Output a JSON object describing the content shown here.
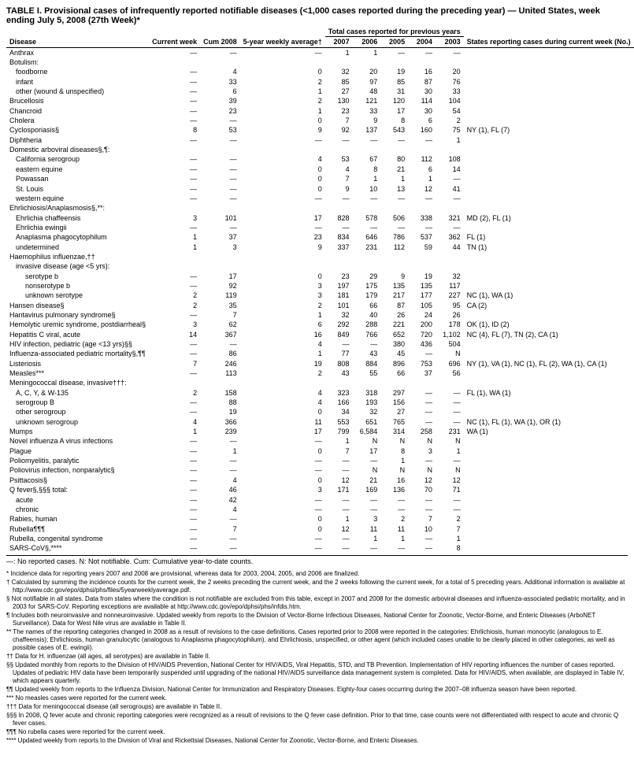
{
  "title": "TABLE I. Provisional cases of infrequently reported notifiable diseases (<1,000 cases reported during the preceding year) — United States, week ending July 5, 2008 (27th Week)*",
  "columns": {
    "disease": "Disease",
    "current_week": "Current week",
    "cum_2008": "Cum 2008",
    "avg": "5-year weekly average†",
    "totals_group": "Total cases reported for previous years",
    "y2007": "2007",
    "y2006": "2006",
    "y2005": "2005",
    "y2004": "2004",
    "y2003": "2003",
    "states": "States reporting cases during current week (No.)"
  },
  "rows": [
    {
      "d": "Anthrax",
      "i": 0,
      "v": [
        "—",
        "—",
        "—",
        "1",
        "1",
        "—",
        "—",
        "—",
        ""
      ]
    },
    {
      "d": "Botulism:",
      "i": 0,
      "v": [
        "",
        "",
        "",
        "",
        "",
        "",
        "",
        "",
        ""
      ]
    },
    {
      "d": "foodborne",
      "i": 1,
      "v": [
        "—",
        "4",
        "0",
        "32",
        "20",
        "19",
        "16",
        "20",
        ""
      ]
    },
    {
      "d": "infant",
      "i": 1,
      "v": [
        "—",
        "33",
        "2",
        "85",
        "97",
        "85",
        "87",
        "76",
        ""
      ]
    },
    {
      "d": "other (wound & unspecified)",
      "i": 1,
      "v": [
        "—",
        "6",
        "1",
        "27",
        "48",
        "31",
        "30",
        "33",
        ""
      ]
    },
    {
      "d": "Brucellosis",
      "i": 0,
      "v": [
        "—",
        "39",
        "2",
        "130",
        "121",
        "120",
        "114",
        "104",
        ""
      ]
    },
    {
      "d": "Chancroid",
      "i": 0,
      "v": [
        "—",
        "23",
        "1",
        "23",
        "33",
        "17",
        "30",
        "54",
        ""
      ]
    },
    {
      "d": "Cholera",
      "i": 0,
      "v": [
        "—",
        "—",
        "0",
        "7",
        "9",
        "8",
        "6",
        "2",
        ""
      ]
    },
    {
      "d": "Cyclosporiasis§",
      "i": 0,
      "v": [
        "8",
        "53",
        "9",
        "92",
        "137",
        "543",
        "160",
        "75",
        "NY (1), FL (7)"
      ]
    },
    {
      "d": "Diphtheria",
      "i": 0,
      "v": [
        "—",
        "—",
        "—",
        "—",
        "—",
        "—",
        "—",
        "1",
        ""
      ]
    },
    {
      "d": "Domestic arboviral diseases§,¶:",
      "i": 0,
      "v": [
        "",
        "",
        "",
        "",
        "",
        "",
        "",
        "",
        ""
      ]
    },
    {
      "d": "California serogroup",
      "i": 1,
      "v": [
        "—",
        "—",
        "4",
        "53",
        "67",
        "80",
        "112",
        "108",
        ""
      ]
    },
    {
      "d": "eastern equine",
      "i": 1,
      "v": [
        "—",
        "—",
        "0",
        "4",
        "8",
        "21",
        "6",
        "14",
        ""
      ]
    },
    {
      "d": "Powassan",
      "i": 1,
      "v": [
        "—",
        "—",
        "0",
        "7",
        "1",
        "1",
        "1",
        "—",
        ""
      ]
    },
    {
      "d": "St. Louis",
      "i": 1,
      "v": [
        "—",
        "—",
        "0",
        "9",
        "10",
        "13",
        "12",
        "41",
        ""
      ]
    },
    {
      "d": "western equine",
      "i": 1,
      "v": [
        "—",
        "—",
        "—",
        "—",
        "—",
        "—",
        "—",
        "—",
        ""
      ]
    },
    {
      "d": "Ehrlichiosis/Anaplasmosis§,**:",
      "i": 0,
      "v": [
        "",
        "",
        "",
        "",
        "",
        "",
        "",
        "",
        ""
      ]
    },
    {
      "d": "Ehrlichia chaffeensis",
      "i": 1,
      "v": [
        "3",
        "101",
        "17",
        "828",
        "578",
        "506",
        "338",
        "321",
        "MD (2), FL (1)"
      ]
    },
    {
      "d": "Ehrlichia ewingii",
      "i": 1,
      "v": [
        "—",
        "—",
        "—",
        "—",
        "—",
        "—",
        "—",
        "—",
        ""
      ]
    },
    {
      "d": "Anaplasma phagocytophilum",
      "i": 1,
      "v": [
        "1",
        "37",
        "23",
        "834",
        "646",
        "786",
        "537",
        "362",
        "FL (1)"
      ]
    },
    {
      "d": "undetermined",
      "i": 1,
      "v": [
        "1",
        "3",
        "9",
        "337",
        "231",
        "112",
        "59",
        "44",
        "TN (1)"
      ]
    },
    {
      "d": "Haemophilus influenzae,††",
      "i": 0,
      "v": [
        "",
        "",
        "",
        "",
        "",
        "",
        "",
        "",
        ""
      ]
    },
    {
      "d": "invasive disease (age <5 yrs):",
      "i": 1,
      "v": [
        "",
        "",
        "",
        "",
        "",
        "",
        "",
        "",
        ""
      ]
    },
    {
      "d": "serotype b",
      "i": 2,
      "v": [
        "—",
        "17",
        "0",
        "23",
        "29",
        "9",
        "19",
        "32",
        ""
      ]
    },
    {
      "d": "nonserotype b",
      "i": 2,
      "v": [
        "—",
        "92",
        "3",
        "197",
        "175",
        "135",
        "135",
        "117",
        ""
      ]
    },
    {
      "d": "unknown serotype",
      "i": 2,
      "v": [
        "2",
        "119",
        "3",
        "181",
        "179",
        "217",
        "177",
        "227",
        "NC (1), WA (1)"
      ]
    },
    {
      "d": "Hansen disease§",
      "i": 0,
      "v": [
        "2",
        "35",
        "2",
        "101",
        "66",
        "87",
        "105",
        "95",
        "CA (2)"
      ]
    },
    {
      "d": "Hantavirus pulmonary syndrome§",
      "i": 0,
      "v": [
        "—",
        "7",
        "1",
        "32",
        "40",
        "26",
        "24",
        "26",
        ""
      ]
    },
    {
      "d": "Hemolytic uremic syndrome, postdiarrheal§",
      "i": 0,
      "v": [
        "3",
        "62",
        "6",
        "292",
        "288",
        "221",
        "200",
        "178",
        "OK (1), ID (2)"
      ]
    },
    {
      "d": "Hepatitis C viral, acute",
      "i": 0,
      "v": [
        "14",
        "367",
        "16",
        "849",
        "766",
        "652",
        "720",
        "1,102",
        "NC (4), FL (7), TN (2), CA (1)"
      ]
    },
    {
      "d": "HIV infection, pediatric (age <13 yrs)§§",
      "i": 0,
      "v": [
        "—",
        "—",
        "4",
        "—",
        "—",
        "380",
        "436",
        "504",
        ""
      ]
    },
    {
      "d": "Influenza-associated pediatric mortality§,¶¶",
      "i": 0,
      "v": [
        "—",
        "86",
        "1",
        "77",
        "43",
        "45",
        "—",
        "N",
        ""
      ]
    },
    {
      "d": "Listeriosis",
      "i": 0,
      "v": [
        "7",
        "246",
        "19",
        "808",
        "884",
        "896",
        "753",
        "696",
        "NY (1), VA (1), NC (1), FL (2), WA (1), CA (1)"
      ]
    },
    {
      "d": "Measles***",
      "i": 0,
      "v": [
        "—",
        "113",
        "2",
        "43",
        "55",
        "66",
        "37",
        "56",
        ""
      ]
    },
    {
      "d": "Meningococcal disease, invasive†††:",
      "i": 0,
      "v": [
        "",
        "",
        "",
        "",
        "",
        "",
        "",
        "",
        ""
      ]
    },
    {
      "d": "A, C, Y, & W-135",
      "i": 1,
      "v": [
        "2",
        "158",
        "4",
        "323",
        "318",
        "297",
        "—",
        "—",
        "FL (1), WA (1)"
      ]
    },
    {
      "d": "serogroup B",
      "i": 1,
      "v": [
        "—",
        "88",
        "4",
        "166",
        "193",
        "156",
        "—",
        "—",
        ""
      ]
    },
    {
      "d": "other serogroup",
      "i": 1,
      "v": [
        "—",
        "19",
        "0",
        "34",
        "32",
        "27",
        "—",
        "—",
        ""
      ]
    },
    {
      "d": "unknown serogroup",
      "i": 1,
      "v": [
        "4",
        "366",
        "11",
        "553",
        "651",
        "765",
        "—",
        "—",
        "NC (1), FL (1), WA (1), OR (1)"
      ]
    },
    {
      "d": "Mumps",
      "i": 0,
      "v": [
        "1",
        "239",
        "17",
        "799",
        "6,584",
        "314",
        "258",
        "231",
        "WA (1)"
      ]
    },
    {
      "d": "Novel influenza A virus infections",
      "i": 0,
      "v": [
        "—",
        "—",
        "—",
        "1",
        "N",
        "N",
        "N",
        "N",
        ""
      ]
    },
    {
      "d": "Plague",
      "i": 0,
      "v": [
        "—",
        "1",
        "0",
        "7",
        "17",
        "8",
        "3",
        "1",
        ""
      ]
    },
    {
      "d": "Poliomyelitis, paralytic",
      "i": 0,
      "v": [
        "—",
        "—",
        "—",
        "—",
        "—",
        "1",
        "—",
        "—",
        ""
      ]
    },
    {
      "d": "Poliovirus infection, nonparalytic§",
      "i": 0,
      "v": [
        "—",
        "—",
        "—",
        "—",
        "N",
        "N",
        "N",
        "N",
        ""
      ]
    },
    {
      "d": "Psittacosis§",
      "i": 0,
      "v": [
        "—",
        "4",
        "0",
        "12",
        "21",
        "16",
        "12",
        "12",
        ""
      ]
    },
    {
      "d": "Q fever§,§§§ total:",
      "i": 0,
      "v": [
        "—",
        "46",
        "3",
        "171",
        "169",
        "136",
        "70",
        "71",
        ""
      ]
    },
    {
      "d": "acute",
      "i": 1,
      "v": [
        "—",
        "42",
        "—",
        "—",
        "—",
        "—",
        "—",
        "—",
        ""
      ]
    },
    {
      "d": "chronic",
      "i": 1,
      "v": [
        "—",
        "4",
        "—",
        "—",
        "—",
        "—",
        "—",
        "—",
        ""
      ]
    },
    {
      "d": "Rabies, human",
      "i": 0,
      "v": [
        "—",
        "—",
        "0",
        "1",
        "3",
        "2",
        "7",
        "2",
        ""
      ]
    },
    {
      "d": "Rubella¶¶¶",
      "i": 0,
      "v": [
        "—",
        "7",
        "0",
        "12",
        "11",
        "11",
        "10",
        "7",
        ""
      ]
    },
    {
      "d": "Rubella, congenital syndrome",
      "i": 0,
      "v": [
        "—",
        "—",
        "—",
        "—",
        "1",
        "1",
        "—",
        "1",
        ""
      ]
    },
    {
      "d": "SARS-CoV§,****",
      "i": 0,
      "v": [
        "—",
        "—",
        "—",
        "—",
        "—",
        "—",
        "—",
        "8",
        ""
      ]
    }
  ],
  "footer_line": "—: No reported cases.    N: Not notifiable.    Cum: Cumulative year-to-date counts.",
  "footnotes": [
    "* Incidence data for reporting years 2007 and 2008 are provisional, whereas data for 2003, 2004, 2005, and 2006 are finalized.",
    "† Calculated by summing the incidence counts for the current week, the 2 weeks preceding the current week, and the 2 weeks following the current week, for a total of 5 preceding years. Additional information is available at http://www.cdc.gov/epo/dphsi/phs/files/5yearweeklyaverage.pdf.",
    "§ Not notifiable in all states. Data from states where the condition is not notifiable are excluded from this table, except in 2007 and 2008 for the domestic arboviral diseases and influenza-associated pediatric mortality, and in 2003 for SARS-CoV. Reporting exceptions are available at http://www.cdc.gov/epo/dphsi/phs/infdis.htm.",
    "¶ Includes both neuroinvasive and nonneuroinvasive. Updated weekly from reports to the Division of Vector-Borne Infectious Diseases, National Center for Zoonotic, Vector-Borne, and Enteric Diseases (ArboNET Surveillance). Data for West Nile virus are available in Table II.",
    "** The names of the reporting categories changed in 2008 as a result of revisions to the case definitions. Cases reported prior to 2008 were reported in the categories: Ehrlichiosis, human monocytic (analogous to E. chaffeensis); Ehrlichiosis, human granulocytic (analogous to Anaplasma phagocytophilum), and Ehrlichiosis, unspecified, or other agent (which included cases unable to be clearly placed in other categories, as well as possible cases of E. ewingii).",
    "†† Data for H. influenzae (all ages, all serotypes) are available in Table II.",
    "§§ Updated monthly from reports to the Division of HIV/AIDS Prevention, National Center for HIV/AIDS, Viral Hepatitis, STD, and TB Prevention. Implementation of HIV reporting influences the number of cases reported. Updates of pediatric HIV data have been temporarily suspended until upgrading of the national HIV/AIDS surveillance data management system is completed. Data for HIV/AIDS, when available, are displayed in Table IV, which appears quarterly.",
    "¶¶ Updated weekly from reports to the Influenza Division, National Center for Immunization and Respiratory Diseases. Eighty-four cases occurring during the 2007–08 influenza season have been reported.",
    "*** No measles cases were reported for the current week.",
    "††† Data for meningococcal disease (all serogroups) are available in Table II.",
    "§§§ In 2008, Q fever acute and chronic reporting categories were recognized as a result of revisions to the Q fever case definition. Prior to that time, case counts were not differentiated with respect to acute and chronic Q fever cases.",
    "¶¶¶ No rubella cases were reported for the current week.",
    "**** Updated weekly from reports to the Division of Viral and Rickettsial Diseases, National Center for Zoonotic, Vector-Borne, and Enteric Diseases."
  ]
}
